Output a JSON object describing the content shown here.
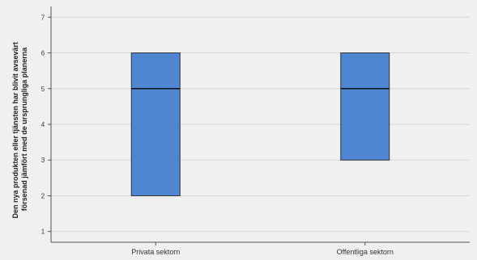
{
  "chart_data": {
    "type": "box",
    "categories": [
      "Privata sektorn",
      "Offentliga sektorn"
    ],
    "series": [
      {
        "values": [
          {
            "q1": 2,
            "median": 5,
            "q3": 6
          },
          {
            "q1": 3,
            "median": 5,
            "q3": 6
          }
        ]
      }
    ],
    "ylabel_lines": [
      "Den nya produkten eller tjänsten har blivit avsevärt",
      "försenad jämfört med de ursprungliga planerna"
    ],
    "ylim": [
      0.7,
      7.3
    ],
    "yticks": [
      "1",
      "2",
      "3",
      "4",
      "5",
      "6",
      "7"
    ],
    "grid": true,
    "colors": {
      "box_fill": "#4f86d2",
      "box_stroke": "#333333",
      "median": "#111111",
      "grid": "#d4d4d4",
      "axis": "#555555",
      "background": "#f0f0f0"
    }
  }
}
